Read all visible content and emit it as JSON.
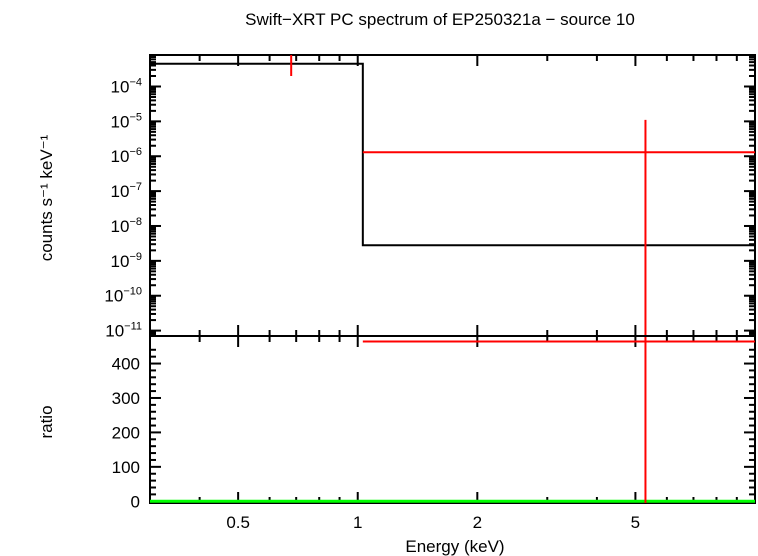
{
  "chart_data": {
    "type": "scatter",
    "title": "Swift−XRT PC spectrum of EP250321a − source 10",
    "xlabel": "Energy (keV)",
    "x_scale": "log",
    "xlim": [
      0.3,
      10
    ],
    "x_ticks": [
      {
        "value": 0.5,
        "label": "0.5"
      },
      {
        "value": 1,
        "label": "1"
      },
      {
        "value": 2,
        "label": "2"
      },
      {
        "value": 5,
        "label": "5"
      }
    ],
    "panels": [
      {
        "name": "spectrum",
        "ylabel": "counts s⁻¹ keV⁻¹",
        "y_scale": "log",
        "ylim": [
          7e-12,
          0.0008
        ],
        "y_ticks": [
          {
            "value": 0.0001,
            "base": "10",
            "exp": "−4"
          },
          {
            "value": 1e-05,
            "base": "10",
            "exp": "−5"
          },
          {
            "value": 1e-06,
            "base": "10",
            "exp": "−6"
          },
          {
            "value": 1e-07,
            "base": "10",
            "exp": "−7"
          },
          {
            "value": 1e-08,
            "base": "10",
            "exp": "−8"
          },
          {
            "value": 1e-09,
            "base": "10",
            "exp": "−9"
          },
          {
            "value": 1e-10,
            "base": "10",
            "exp": "−10"
          },
          {
            "value": 1e-11,
            "base": "10",
            "exp": "−11"
          }
        ],
        "series": [
          {
            "kind": "data",
            "color": "#ff0000",
            "points": [
              {
                "x": 0.68,
                "y": 0.0008,
                "xlo": 0.68,
                "xhi": 0.68,
                "ylo": 0.0002,
                "yhi": 0.0008
              },
              {
                "x": 5.3,
                "y": 1.3e-06,
                "xlo": 1.03,
                "xhi": 10,
                "ylo": 7e-12,
                "yhi": 1.1e-05
              }
            ]
          },
          {
            "kind": "model",
            "color": "#000000",
            "steps": [
              {
                "x0": 0.3,
                "x1": 1.03,
                "y": 0.00045
              },
              {
                "x0": 1.03,
                "x1": 10,
                "y": 2.8e-09
              }
            ]
          }
        ]
      },
      {
        "name": "ratio",
        "ylabel": "ratio",
        "y_scale": "linear",
        "ylim": [
          -5,
          480
        ],
        "y_ticks": [
          {
            "value": 0,
            "label": "0"
          },
          {
            "value": 100,
            "label": "100"
          },
          {
            "value": 200,
            "label": "200"
          },
          {
            "value": 300,
            "label": "300"
          },
          {
            "value": 400,
            "label": "400"
          }
        ],
        "series": [
          {
            "kind": "data",
            "color": "#ff0000",
            "points": [
              {
                "x": 5.3,
                "y": 464,
                "xlo": 1.03,
                "xhi": 10,
                "ylo": -5,
                "yhi": 480
              }
            ]
          },
          {
            "kind": "reference",
            "color": "#00ff00",
            "y": 0
          }
        ]
      }
    ]
  }
}
